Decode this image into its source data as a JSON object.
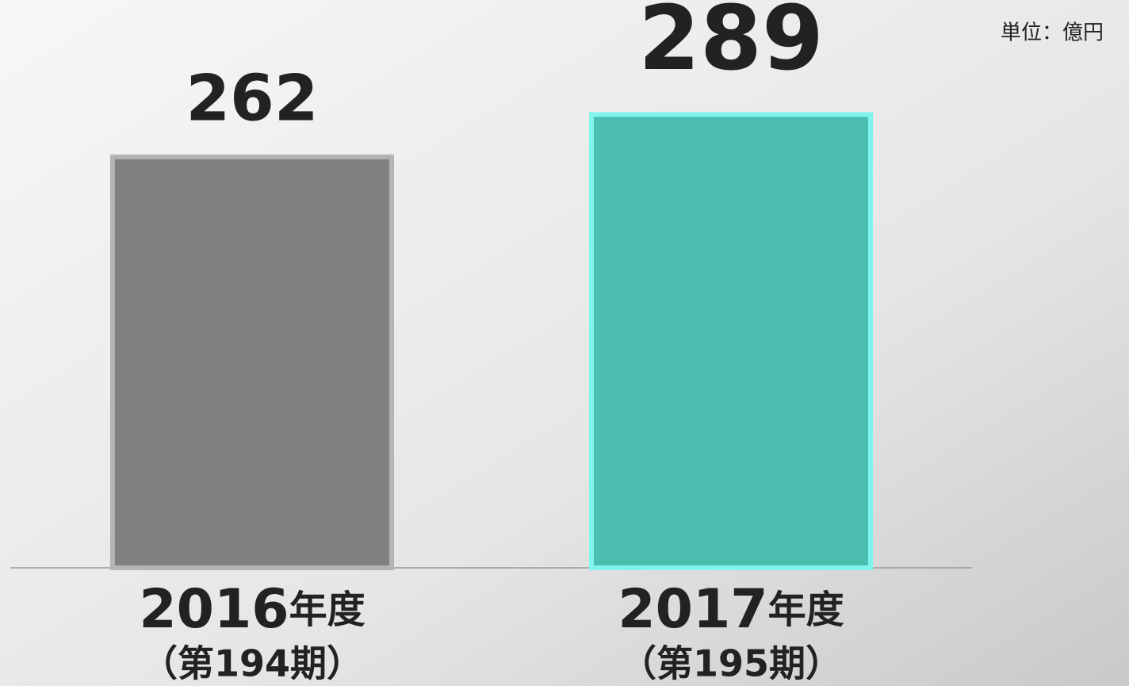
{
  "chart_data": {
    "type": "bar",
    "unit_label": "単位：億円",
    "categories": [
      "2016年度",
      "2017年度"
    ],
    "sublabels": [
      "（第194期）",
      "（第195期）"
    ],
    "values": [
      262,
      289
    ],
    "colors": [
      "#808080",
      "#4bbeb0"
    ],
    "border_colors": [
      "#b4b4b4",
      "#7ff5ee"
    ]
  }
}
